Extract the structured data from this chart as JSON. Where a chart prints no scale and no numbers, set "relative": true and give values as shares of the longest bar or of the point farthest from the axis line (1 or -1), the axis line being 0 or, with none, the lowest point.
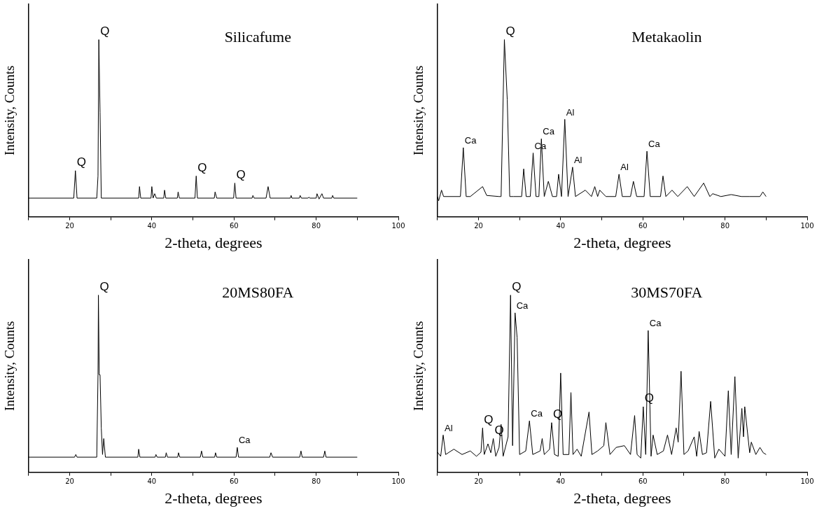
{
  "chart_data": [
    {
      "type": "line",
      "title": "Silicafume",
      "xlabel": "2-theta, degrees",
      "ylabel": "Intensity, Counts",
      "relative": true,
      "tick_labels": "x",
      "marker": "none",
      "line_style": "solid",
      "legend": false,
      "grid": false,
      "color": "#000000",
      "xlim": [
        10,
        100
      ],
      "xticks": [
        {
          "value": 10,
          "label": null
        },
        20,
        {
          "value": 30,
          "label": null
        },
        40,
        {
          "value": 50,
          "label": null
        },
        60,
        {
          "value": 70,
          "label": null
        },
        80,
        {
          "value": 90,
          "label": null
        },
        100
      ],
      "x": [
        10,
        21.0,
        21.4,
        21.8,
        26.6,
        26.9,
        27.1,
        27.4,
        27.7,
        36.8,
        37.0,
        37.3,
        39.8,
        40.0,
        40.3,
        40.7,
        41.1,
        42.9,
        43.1,
        43.4,
        46.2,
        46.4,
        46.7,
        50.5,
        50.8,
        51.1,
        55.2,
        55.4,
        55.8,
        59.9,
        60.2,
        60.5,
        64.4,
        64.6,
        64.9,
        67.8,
        68.3,
        68.8,
        73.7,
        73.9,
        74.1,
        75.9,
        76.1,
        76.4,
        78.0,
        78.2,
        78.5,
        80.0,
        80.2,
        80.7,
        81.4,
        81.8,
        83.8,
        84.0,
        84.3,
        90
      ],
      "values": [
        0.105,
        0.105,
        0.26,
        0.105,
        0.105,
        0.23,
        1.0,
        0.59,
        0.105,
        0.105,
        0.17,
        0.105,
        0.105,
        0.17,
        0.105,
        0.13,
        0.105,
        0.105,
        0.15,
        0.105,
        0.105,
        0.14,
        0.105,
        0.105,
        0.23,
        0.105,
        0.105,
        0.14,
        0.105,
        0.105,
        0.19,
        0.105,
        0.105,
        0.12,
        0.105,
        0.105,
        0.17,
        0.105,
        0.105,
        0.12,
        0.105,
        0.105,
        0.12,
        0.105,
        0.105,
        0.11,
        0.105,
        0.105,
        0.13,
        0.1,
        0.13,
        0.105,
        0.105,
        0.12,
        0.105,
        0.105
      ],
      "annotations": [
        {
          "text": "Q",
          "x": 21.4,
          "y": 0.26
        },
        {
          "text": "Q",
          "x": 27.1,
          "y": 1.0
        },
        {
          "text": "Q",
          "x": 50.8,
          "y": 0.23
        },
        {
          "text": "Q",
          "x": 60.2,
          "y": 0.19
        }
      ]
    },
    {
      "type": "line",
      "title": "Metakaolin",
      "xlabel": "2-theta, degrees",
      "ylabel": "Intensity, Counts",
      "relative": true,
      "tick_labels": "x",
      "marker": "none",
      "line_style": "solid",
      "legend": false,
      "grid": false,
      "color": "#000000",
      "xlim": [
        10,
        100
      ],
      "xticks": [
        {
          "value": 10,
          "label": null
        },
        20,
        {
          "value": 30,
          "label": null
        },
        40,
        {
          "value": 50,
          "label": null
        },
        60,
        {
          "value": 70,
          "label": null
        },
        80,
        {
          "value": 90,
          "label": null
        },
        100
      ],
      "x": [
        10,
        10.3,
        11,
        11.5,
        15.6,
        16.3,
        17.0,
        18,
        21,
        22,
        25,
        25.5,
        26.3,
        27.0,
        27.6,
        28.5,
        30.5,
        31.0,
        31.6,
        32.6,
        33.3,
        34.0,
        34.7,
        35.3,
        36.0,
        37.0,
        38.0,
        39.0,
        39.5,
        40.2,
        41.0,
        41.8,
        42.9,
        43.6,
        46.0,
        47.5,
        48.3,
        49.0,
        49.5,
        51,
        53.4,
        54.2,
        55.0,
        57.0,
        57.7,
        58.5,
        60.3,
        61.0,
        61.8,
        64.3,
        64.9,
        65.6,
        67.1,
        68.5,
        70.8,
        72.5,
        74.8,
        76.3,
        77,
        79,
        81.5,
        84,
        86,
        88.5,
        89.2,
        90
      ],
      "values": [
        0.114,
        0.09,
        0.15,
        0.114,
        0.114,
        0.39,
        0.114,
        0.114,
        0.17,
        0.12,
        0.114,
        0.114,
        1.0,
        0.66,
        0.114,
        0.114,
        0.114,
        0.27,
        0.114,
        0.114,
        0.36,
        0.114,
        0.114,
        0.44,
        0.114,
        0.2,
        0.114,
        0.114,
        0.24,
        0.114,
        0.55,
        0.114,
        0.28,
        0.114,
        0.15,
        0.114,
        0.17,
        0.114,
        0.15,
        0.114,
        0.114,
        0.24,
        0.114,
        0.114,
        0.2,
        0.114,
        0.114,
        0.37,
        0.114,
        0.114,
        0.23,
        0.114,
        0.15,
        0.114,
        0.17,
        0.114,
        0.19,
        0.114,
        0.13,
        0.114,
        0.125,
        0.114,
        0.114,
        0.114,
        0.14,
        0.114
      ],
      "annotations": [
        {
          "text": "Ca",
          "x": 16.3,
          "y": 0.39
        },
        {
          "text": "Q",
          "x": 26.3,
          "y": 1.0
        },
        {
          "text": "Ca",
          "x": 33.3,
          "y": 0.36
        },
        {
          "text": "Ca",
          "x": 35.3,
          "y": 0.44
        },
        {
          "text": "Al",
          "x": 41.0,
          "y": 0.55
        },
        {
          "text": "Al",
          "x": 42.9,
          "y": 0.28
        },
        {
          "text": "Al",
          "x": 54.2,
          "y": 0.24
        },
        {
          "text": "Ca",
          "x": 61.0,
          "y": 0.37
        }
      ]
    },
    {
      "type": "line",
      "title": "20MS80FA",
      "xlabel": "2-theta, degrees",
      "ylabel": "Intensity, Counts",
      "relative": true,
      "tick_labels": "x",
      "marker": "none",
      "line_style": "solid",
      "legend": false,
      "grid": false,
      "color": "#000000",
      "xlim": [
        10,
        100
      ],
      "xticks": [
        {
          "value": 10,
          "label": null
        },
        20,
        {
          "value": 30,
          "label": null
        },
        40,
        {
          "value": 50,
          "label": null
        },
        60,
        {
          "value": 70,
          "label": null
        },
        80,
        {
          "value": 90,
          "label": null
        },
        100
      ],
      "x": [
        10,
        21.2,
        21.5,
        21.8,
        26.6,
        26.9,
        27.0,
        27.2,
        27.4,
        27.7,
        28.0,
        28.3,
        28.7,
        36.6,
        36.8,
        37.1,
        40.8,
        41.0,
        41.3,
        43.3,
        43.5,
        43.8,
        46.3,
        46.5,
        46.8,
        51.8,
        52.1,
        52.4,
        55.3,
        55.5,
        55.8,
        60.5,
        60.8,
        61.1,
        68.7,
        69.0,
        69.4,
        76.0,
        76.3,
        76.6,
        81.8,
        82.1,
        82.4,
        90
      ],
      "values": [
        0.085,
        0.085,
        0.1,
        0.085,
        0.085,
        0.55,
        1.0,
        0.55,
        0.55,
        0.25,
        0.1,
        0.19,
        0.085,
        0.085,
        0.13,
        0.085,
        0.085,
        0.1,
        0.085,
        0.085,
        0.11,
        0.085,
        0.085,
        0.11,
        0.085,
        0.085,
        0.12,
        0.085,
        0.085,
        0.11,
        0.085,
        0.085,
        0.14,
        0.085,
        0.085,
        0.11,
        0.085,
        0.085,
        0.12,
        0.085,
        0.085,
        0.12,
        0.085,
        0.085
      ],
      "annotations": [
        {
          "text": "Q",
          "x": 27.0,
          "y": 1.0
        },
        {
          "text": "Ca",
          "x": 60.8,
          "y": 0.14
        }
      ]
    },
    {
      "type": "line",
      "title": "30MS70FA",
      "xlabel": "2-theta, degrees",
      "ylabel": "Intensity, Counts",
      "relative": true,
      "tick_labels": "x",
      "marker": "none",
      "line_style": "solid",
      "legend": false,
      "grid": false,
      "color": "#000000",
      "xlim": [
        10,
        100
      ],
      "xticks": [
        {
          "value": 10,
          "label": null
        },
        20,
        {
          "value": 30,
          "label": null
        },
        40,
        {
          "value": 50,
          "label": null
        },
        60,
        {
          "value": 70,
          "label": null
        },
        80,
        {
          "value": 90,
          "label": null
        },
        100
      ],
      "x": [
        10,
        10.8,
        11.4,
        12,
        14,
        16,
        18,
        19.5,
        20.6,
        21.0,
        21.4,
        22.3,
        23.0,
        23.6,
        24.2,
        25.0,
        25.5,
        26.0,
        27.2,
        27.8,
        28.3,
        28.9,
        29.4,
        30.0,
        31.5,
        32.4,
        33.2,
        35.0,
        35.5,
        36.0,
        37.3,
        37.8,
        38.5,
        39.4,
        40.0,
        40.6,
        42.0,
        42.5,
        43.0,
        44.0,
        45,
        46.9,
        47.6,
        49,
        50.5,
        51.0,
        52.0,
        53.5,
        55.5,
        57,
        58.0,
        58.6,
        59.5,
        60.1,
        60.7,
        61.3,
        62.0,
        62.5,
        63.5,
        65,
        66.0,
        67,
        68.1,
        68.6,
        69.3,
        70.0,
        71,
        72.5,
        73.1,
        73.7,
        74.5,
        75.5,
        76.5,
        77.5,
        78.5,
        80.0,
        80.8,
        81.5,
        82.4,
        83.2,
        84.1,
        84.5,
        84.8,
        86.0,
        86.4,
        87.5,
        88.5,
        89.3,
        90
      ],
      "values": [
        0.113,
        0.09,
        0.21,
        0.1,
        0.13,
        0.1,
        0.12,
        0.09,
        0.113,
        0.25,
        0.1,
        0.16,
        0.11,
        0.19,
        0.09,
        0.14,
        0.27,
        0.09,
        0.2,
        1.0,
        0.15,
        0.9,
        0.76,
        0.1,
        0.12,
        0.29,
        0.1,
        0.12,
        0.19,
        0.1,
        0.13,
        0.28,
        0.1,
        0.09,
        0.56,
        0.1,
        0.1,
        0.45,
        0.1,
        0.13,
        0.09,
        0.34,
        0.1,
        0.12,
        0.15,
        0.28,
        0.1,
        0.14,
        0.15,
        0.1,
        0.32,
        0.1,
        0.08,
        0.37,
        0.1,
        0.8,
        0.09,
        0.21,
        0.1,
        0.12,
        0.21,
        0.1,
        0.25,
        0.17,
        0.57,
        0.1,
        0.12,
        0.2,
        0.09,
        0.23,
        0.1,
        0.11,
        0.4,
        0.08,
        0.13,
        0.09,
        0.46,
        0.1,
        0.54,
        0.08,
        0.36,
        0.2,
        0.37,
        0.11,
        0.17,
        0.1,
        0.14,
        0.11,
        0.1
      ],
      "annotations": [
        {
          "text": "Al",
          "x": 11.4,
          "y": 0.21
        },
        {
          "text": "Q",
          "x": 21.0,
          "y": 0.25
        },
        {
          "text": "Q",
          "x": 23.6,
          "y": 0.19
        },
        {
          "text": "Q",
          "x": 27.8,
          "y": 1.0
        },
        {
          "text": "Ca",
          "x": 28.9,
          "y": 0.9
        },
        {
          "text": "Ca",
          "x": 32.4,
          "y": 0.29
        },
        {
          "text": "Q",
          "x": 37.8,
          "y": 0.28
        },
        {
          "text": "Q",
          "x": 60.1,
          "y": 0.37
        },
        {
          "text": "Ca",
          "x": 61.3,
          "y": 0.8
        }
      ]
    }
  ]
}
